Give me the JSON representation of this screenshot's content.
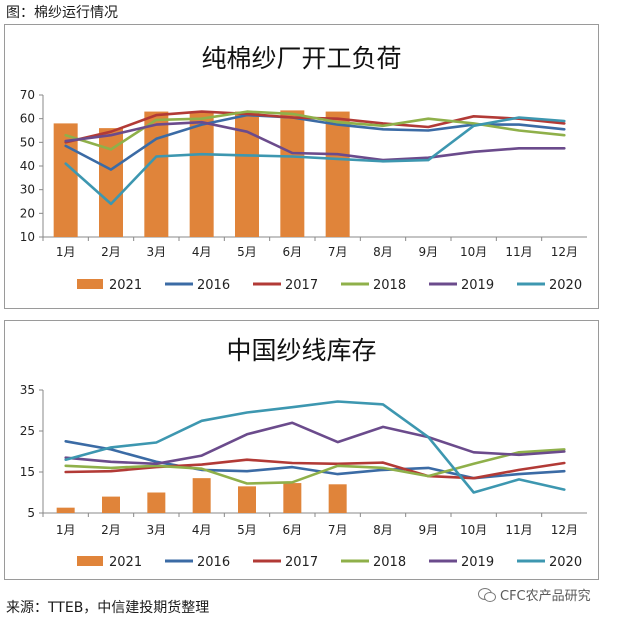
{
  "figure_title": "图：棉纱运行情况",
  "source": "来源：TTEB，中信建投期货整理",
  "watermark": "CFC农产品研究",
  "watermark_icon": "wechat-icon",
  "chart_data": [
    {
      "type": "bar+line",
      "title": "纯棉纱厂开工负荷",
      "categories": [
        "1月",
        "2月",
        "3月",
        "4月",
        "5月",
        "6月",
        "7月",
        "8月",
        "9月",
        "10月",
        "11月",
        "12月"
      ],
      "ylim": [
        10,
        70
      ],
      "yticks": [
        10,
        20,
        30,
        40,
        50,
        60,
        70
      ],
      "grid": false,
      "legend_position": "bottom",
      "bar_series": {
        "name": "2021",
        "color": "#E0843A",
        "values": [
          58,
          56,
          63,
          62.5,
          63,
          63.5,
          63,
          null,
          null,
          null,
          null,
          null
        ]
      },
      "series": [
        {
          "name": "2016",
          "color": "#3B6BA5",
          "values": [
            48.5,
            38.5,
            51.5,
            57.5,
            61.5,
            60.5,
            57.5,
            55.5,
            55,
            57.5,
            57.5,
            55.5
          ]
        },
        {
          "name": "2017",
          "color": "#B23A36",
          "values": [
            50,
            54.5,
            61.5,
            63,
            62,
            60.5,
            60,
            58,
            56.5,
            61,
            60,
            58
          ]
        },
        {
          "name": "2018",
          "color": "#8FB04A",
          "values": [
            53,
            47,
            59.5,
            60,
            63,
            62,
            58.5,
            57,
            60,
            58,
            55,
            53
          ]
        },
        {
          "name": "2019",
          "color": "#6B4B8C",
          "values": [
            50.5,
            53,
            57.5,
            58.5,
            54.5,
            45.5,
            45,
            42.5,
            43.5,
            46,
            47.5,
            47.5
          ]
        },
        {
          "name": "2020",
          "color": "#3D97B0",
          "values": [
            41,
            24,
            44,
            45,
            44.5,
            44,
            43,
            42,
            42.5,
            57,
            60.5,
            59
          ]
        }
      ]
    },
    {
      "type": "bar+line",
      "title": "中国纱线库存",
      "categories": [
        "1月",
        "2月",
        "3月",
        "4月",
        "5月",
        "6月",
        "7月",
        "8月",
        "9月",
        "10月",
        "11月",
        "12月"
      ],
      "ylim": [
        5,
        35
      ],
      "yticks": [
        5,
        15,
        25,
        35
      ],
      "grid": false,
      "legend_position": "bottom",
      "bar_series": {
        "name": "2021",
        "color": "#E0843A",
        "values": [
          6.3,
          9,
          10,
          13.5,
          11.5,
          12.3,
          12,
          null,
          null,
          null,
          null,
          null
        ]
      },
      "series": [
        {
          "name": "2016",
          "color": "#3B6BA5",
          "values": [
            22.5,
            20.5,
            17.5,
            15.5,
            15.2,
            16.2,
            14.5,
            15.5,
            16,
            13.5,
            14.5,
            15.2
          ]
        },
        {
          "name": "2017",
          "color": "#B23A36",
          "values": [
            15,
            15.2,
            16.2,
            16.8,
            18,
            17.2,
            17,
            17.3,
            14,
            13.5,
            15.5,
            17.2
          ]
        },
        {
          "name": "2018",
          "color": "#8FB04A",
          "values": [
            16.5,
            16,
            16.5,
            15.8,
            12.2,
            12.5,
            16.5,
            16,
            14,
            17,
            19.8,
            20.5
          ]
        },
        {
          "name": "2019",
          "color": "#6B4B8C",
          "values": [
            18.5,
            17.5,
            17,
            19,
            24.2,
            27,
            22.3,
            26,
            23.5,
            19.8,
            19.2,
            20
          ]
        },
        {
          "name": "2020",
          "color": "#3D97B0",
          "values": [
            18,
            21,
            22.2,
            27.5,
            29.5,
            30.8,
            32.2,
            31.5,
            23.5,
            10,
            13.2,
            10.7
          ]
        }
      ]
    }
  ]
}
